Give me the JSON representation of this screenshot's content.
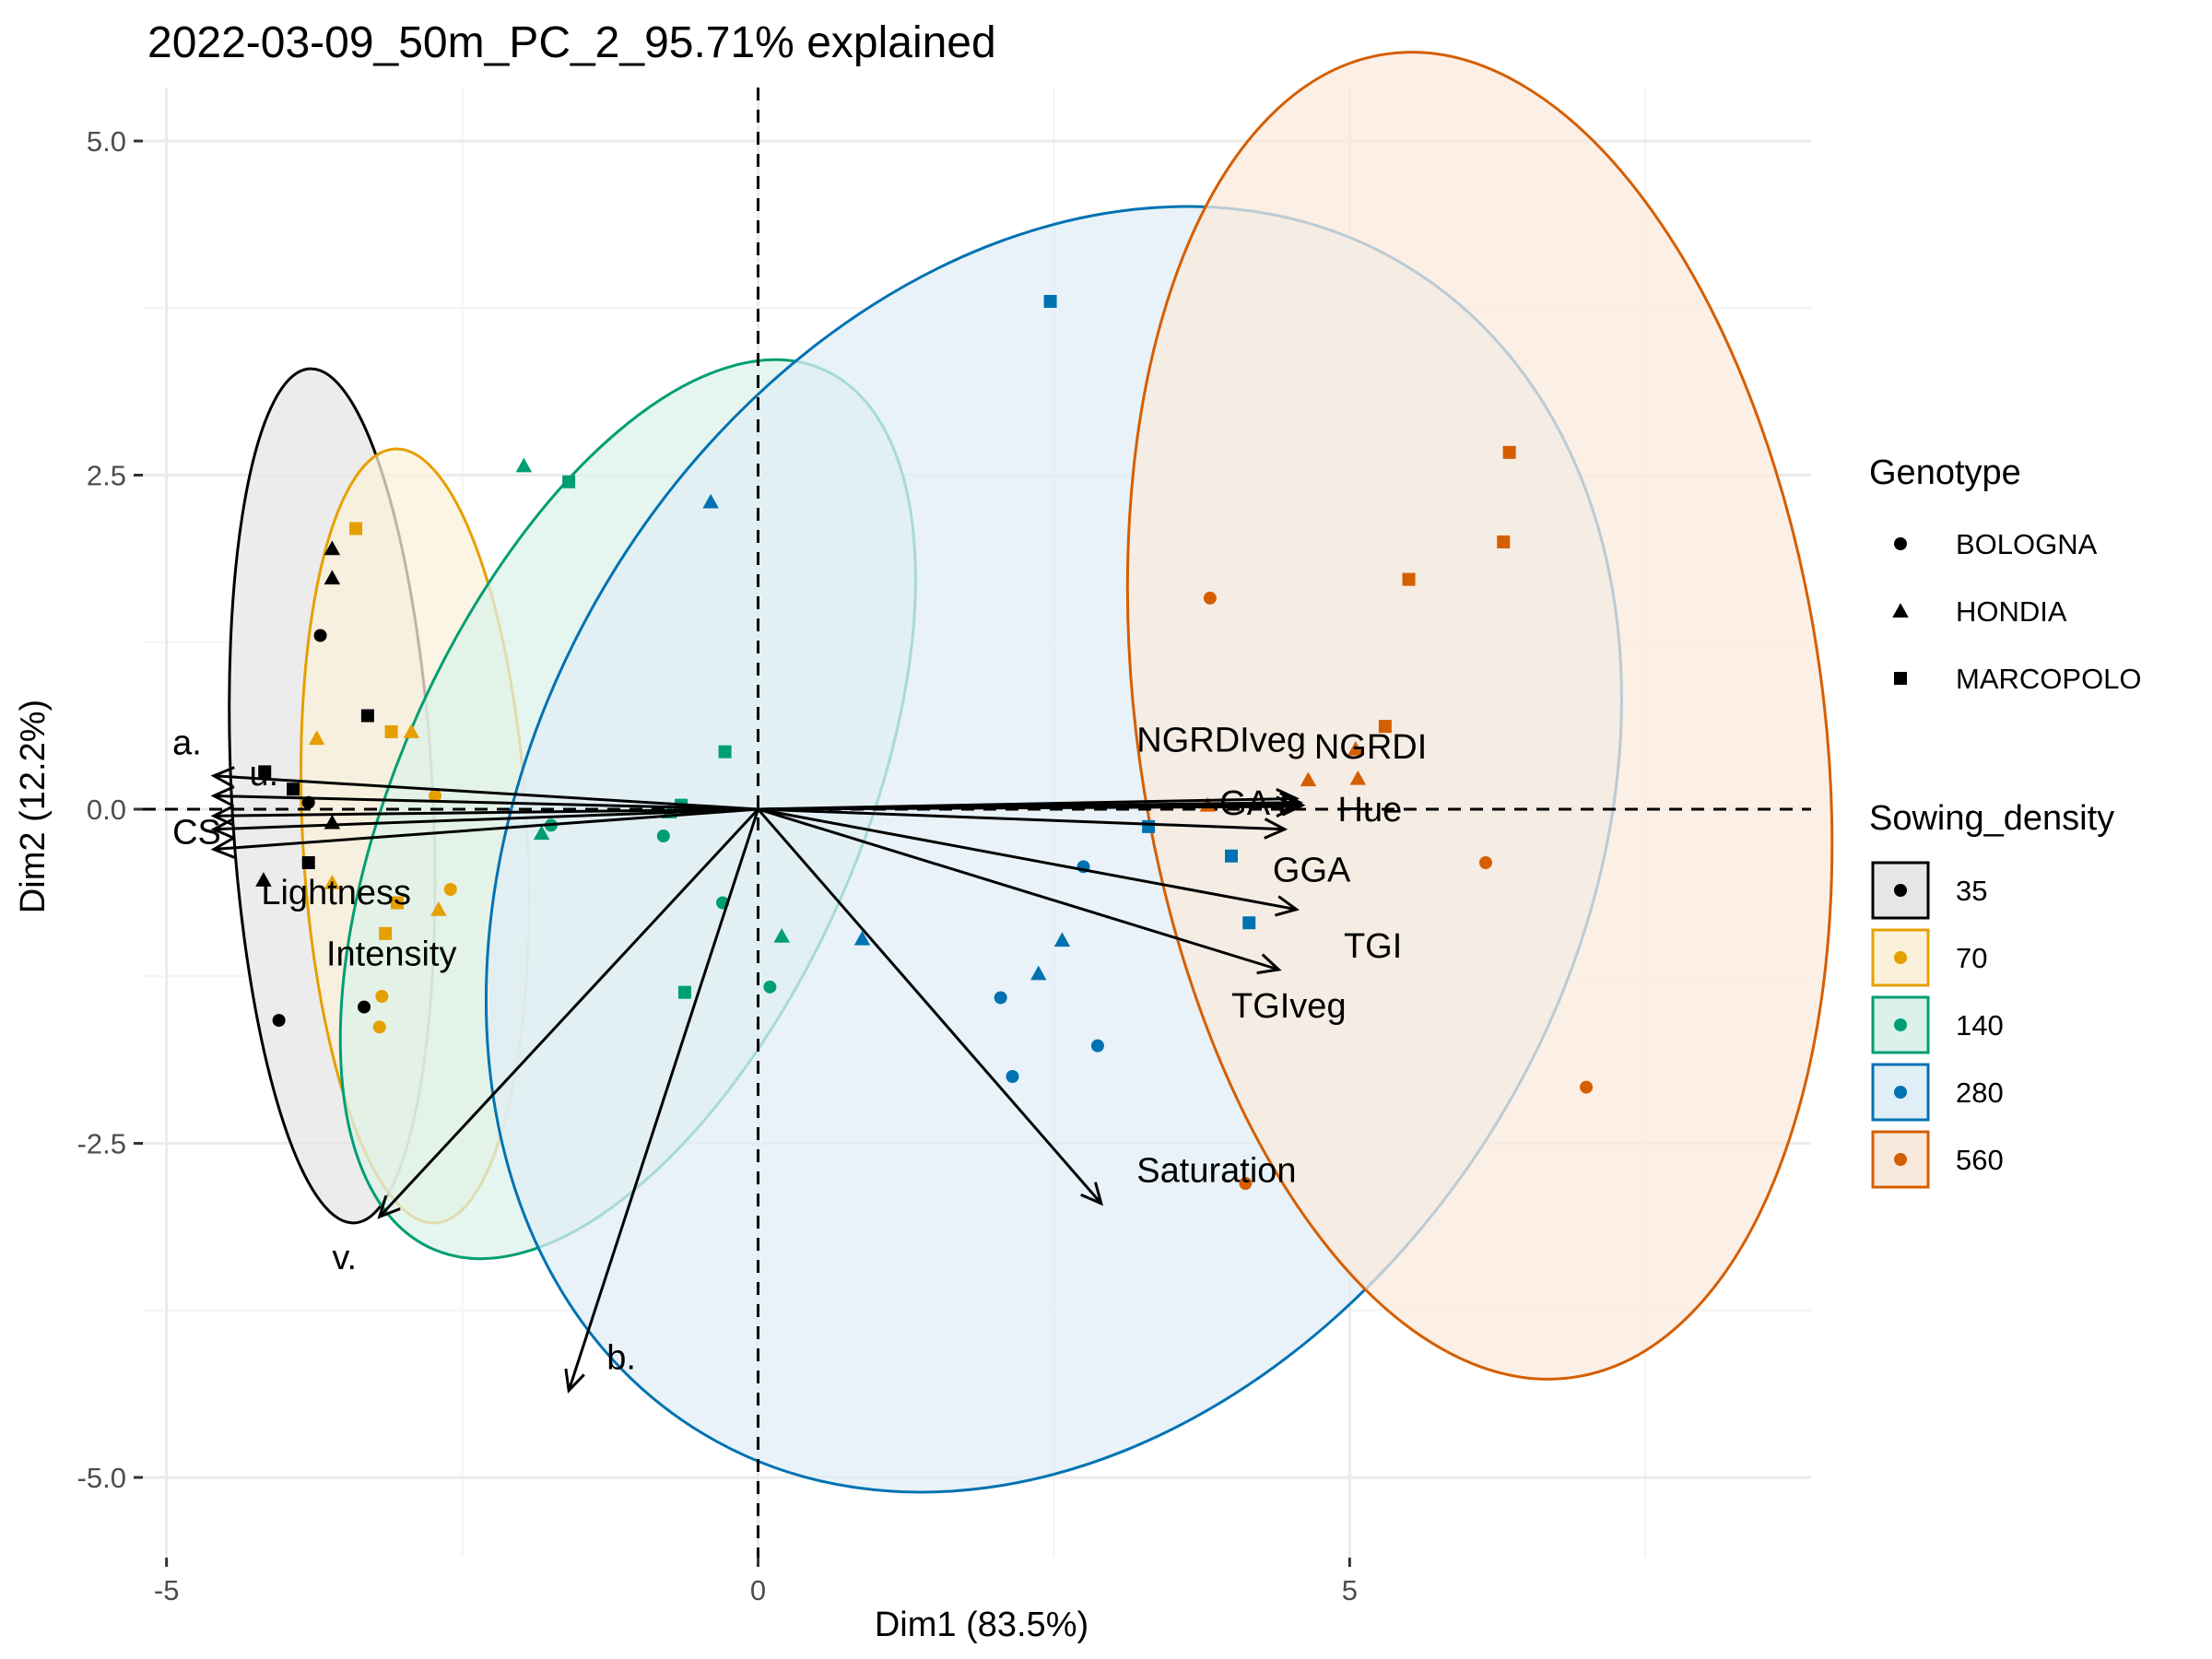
{
  "chart_data": {
    "type": "scatter",
    "title": "2022-03-09_50m_PC_2_95.71% explained",
    "xlabel": "Dim1 (83.5%)",
    "ylabel": "Dim2 (12.2%)",
    "xlim": [
      -5.2,
      8.9
    ],
    "ylim": [
      -5.6,
      5.4
    ],
    "xticks": [
      -5,
      0,
      5
    ],
    "xtick_labels": [
      "-5",
      "0",
      "5"
    ],
    "yticks": [
      -5,
      -2.5,
      0,
      2.5,
      5
    ],
    "ytick_labels": [
      "-5.0",
      "-2.5",
      "0.0",
      "2.5",
      "5.0"
    ],
    "grid": true,
    "legend_position": "right",
    "reference_lines": {
      "x": 0,
      "y": 0,
      "style": "dashed"
    },
    "legends": {
      "genotype": {
        "title": "Genotype",
        "entries": [
          {
            "label": "BOLOGNA",
            "shape": "circle"
          },
          {
            "label": "HONDIA",
            "shape": "triangle"
          },
          {
            "label": "MARCOPOLO",
            "shape": "square"
          }
        ]
      },
      "sowing_density": {
        "title": "Sowing_density",
        "entries": [
          {
            "label": "35",
            "color": "#000000",
            "fill": "#e6e6e6"
          },
          {
            "label": "70",
            "color": "#E69F00",
            "fill": "#fbf1db"
          },
          {
            "label": "140",
            "color": "#009E73",
            "fill": "#dcf1ea"
          },
          {
            "label": "280",
            "color": "#0072B2",
            "fill": "#e0eef6"
          },
          {
            "label": "560",
            "color": "#D55E00",
            "fill": "#f9e9dd"
          }
        ]
      }
    },
    "ellipses": [
      {
        "group": "35",
        "cx": -3.6,
        "cy": 0.1,
        "rx": 0.85,
        "ry": 3.2,
        "angle": -3
      },
      {
        "group": "70",
        "cx": -2.9,
        "cy": -0.2,
        "rx": 0.95,
        "ry": 2.9,
        "angle": -3
      },
      {
        "group": "140",
        "cx": -1.1,
        "cy": 0.0,
        "rx": 1.95,
        "ry": 3.6,
        "angle": 24
      },
      {
        "group": "280",
        "cx": 2.5,
        "cy": -0.3,
        "rx": 4.4,
        "ry": 5.1,
        "angle": 31
      },
      {
        "group": "560",
        "cx": 6.1,
        "cy": 0.7,
        "rx": 2.9,
        "ry": 5.0,
        "angle": -8
      }
    ],
    "points": [
      {
        "x": -3.7,
        "y": 1.3,
        "genotype": "BOLOGNA",
        "density": "35"
      },
      {
        "x": -3.8,
        "y": 0.05,
        "genotype": "BOLOGNA",
        "density": "35"
      },
      {
        "x": -3.33,
        "y": -1.48,
        "genotype": "BOLOGNA",
        "density": "35"
      },
      {
        "x": -4.05,
        "y": -1.58,
        "genotype": "BOLOGNA",
        "density": "35"
      },
      {
        "x": -3.6,
        "y": 1.95,
        "genotype": "HONDIA",
        "density": "35"
      },
      {
        "x": -3.6,
        "y": 1.73,
        "genotype": "HONDIA",
        "density": "35"
      },
      {
        "x": -3.6,
        "y": -0.1,
        "genotype": "HONDIA",
        "density": "35"
      },
      {
        "x": -4.18,
        "y": -0.53,
        "genotype": "HONDIA",
        "density": "35"
      },
      {
        "x": -4.17,
        "y": 0.28,
        "genotype": "MARCOPOLO",
        "density": "35"
      },
      {
        "x": -3.93,
        "y": 0.15,
        "genotype": "MARCOPOLO",
        "density": "35"
      },
      {
        "x": -3.3,
        "y": 0.7,
        "genotype": "MARCOPOLO",
        "density": "35"
      },
      {
        "x": -3.8,
        "y": -0.4,
        "genotype": "MARCOPOLO",
        "density": "35"
      },
      {
        "x": -2.73,
        "y": 0.1,
        "genotype": "BOLOGNA",
        "density": "70"
      },
      {
        "x": -2.6,
        "y": -0.6,
        "genotype": "BOLOGNA",
        "density": "70"
      },
      {
        "x": -3.18,
        "y": -1.4,
        "genotype": "BOLOGNA",
        "density": "70"
      },
      {
        "x": -3.2,
        "y": -1.63,
        "genotype": "BOLOGNA",
        "density": "70"
      },
      {
        "x": -3.73,
        "y": 0.53,
        "genotype": "HONDIA",
        "density": "70"
      },
      {
        "x": -2.93,
        "y": 0.58,
        "genotype": "HONDIA",
        "density": "70"
      },
      {
        "x": -3.6,
        "y": -0.55,
        "genotype": "HONDIA",
        "density": "70"
      },
      {
        "x": -2.7,
        "y": -0.75,
        "genotype": "HONDIA",
        "density": "70"
      },
      {
        "x": -3.4,
        "y": 2.1,
        "genotype": "MARCOPOLO",
        "density": "70"
      },
      {
        "x": -3.1,
        "y": 0.58,
        "genotype": "MARCOPOLO",
        "density": "70"
      },
      {
        "x": -3.05,
        "y": -0.7,
        "genotype": "MARCOPOLO",
        "density": "70"
      },
      {
        "x": -3.15,
        "y": -0.93,
        "genotype": "MARCOPOLO",
        "density": "70"
      },
      {
        "x": -1.75,
        "y": -0.12,
        "genotype": "BOLOGNA",
        "density": "140"
      },
      {
        "x": -0.8,
        "y": -0.2,
        "genotype": "BOLOGNA",
        "density": "140"
      },
      {
        "x": -0.3,
        "y": -0.7,
        "genotype": "BOLOGNA",
        "density": "140"
      },
      {
        "x": 0.1,
        "y": -1.33,
        "genotype": "BOLOGNA",
        "density": "140"
      },
      {
        "x": -1.98,
        "y": 2.57,
        "genotype": "HONDIA",
        "density": "140"
      },
      {
        "x": -1.83,
        "y": -0.18,
        "genotype": "HONDIA",
        "density": "140"
      },
      {
        "x": -0.75,
        "y": -0.02,
        "genotype": "HONDIA",
        "density": "140"
      },
      {
        "x": 0.2,
        "y": -0.95,
        "genotype": "HONDIA",
        "density": "140"
      },
      {
        "x": -1.6,
        "y": 2.45,
        "genotype": "MARCOPOLO",
        "density": "140"
      },
      {
        "x": -0.28,
        "y": 0.43,
        "genotype": "MARCOPOLO",
        "density": "140"
      },
      {
        "x": -0.65,
        "y": 0.03,
        "genotype": "MARCOPOLO",
        "density": "140"
      },
      {
        "x": -0.62,
        "y": -1.37,
        "genotype": "MARCOPOLO",
        "density": "140"
      },
      {
        "x": 2.75,
        "y": -0.43,
        "genotype": "BOLOGNA",
        "density": "280"
      },
      {
        "x": 2.05,
        "y": -1.41,
        "genotype": "BOLOGNA",
        "density": "280"
      },
      {
        "x": 2.15,
        "y": -2.0,
        "genotype": "BOLOGNA",
        "density": "280"
      },
      {
        "x": 2.87,
        "y": -1.77,
        "genotype": "BOLOGNA",
        "density": "280"
      },
      {
        "x": -0.4,
        "y": 2.3,
        "genotype": "HONDIA",
        "density": "280"
      },
      {
        "x": 0.88,
        "y": -0.97,
        "genotype": "HONDIA",
        "density": "280"
      },
      {
        "x": 2.37,
        "y": -1.23,
        "genotype": "HONDIA",
        "density": "280"
      },
      {
        "x": 2.57,
        "y": -0.98,
        "genotype": "HONDIA",
        "density": "280"
      },
      {
        "x": 2.47,
        "y": 3.8,
        "genotype": "MARCOPOLO",
        "density": "280"
      },
      {
        "x": 3.3,
        "y": -0.13,
        "genotype": "MARCOPOLO",
        "density": "280"
      },
      {
        "x": 4.0,
        "y": -0.35,
        "genotype": "MARCOPOLO",
        "density": "280"
      },
      {
        "x": 4.15,
        "y": -0.85,
        "genotype": "MARCOPOLO",
        "density": "280"
      },
      {
        "x": 3.82,
        "y": 1.58,
        "genotype": "BOLOGNA",
        "density": "560"
      },
      {
        "x": 6.15,
        "y": -0.4,
        "genotype": "BOLOGNA",
        "density": "560"
      },
      {
        "x": 4.12,
        "y": -2.8,
        "genotype": "BOLOGNA",
        "density": "560"
      },
      {
        "x": 7.0,
        "y": -2.08,
        "genotype": "BOLOGNA",
        "density": "560"
      },
      {
        "x": 3.8,
        "y": 0.03,
        "genotype": "HONDIA",
        "density": "560"
      },
      {
        "x": 4.65,
        "y": 0.22,
        "genotype": "HONDIA",
        "density": "560"
      },
      {
        "x": 5.05,
        "y": 0.45,
        "genotype": "HONDIA",
        "density": "560"
      },
      {
        "x": 5.07,
        "y": 0.23,
        "genotype": "HONDIA",
        "density": "560"
      },
      {
        "x": 5.5,
        "y": 1.72,
        "genotype": "MARCOPOLO",
        "density": "560"
      },
      {
        "x": 6.3,
        "y": 2.0,
        "genotype": "MARCOPOLO",
        "density": "560"
      },
      {
        "x": 6.35,
        "y": 2.67,
        "genotype": "MARCOPOLO",
        "density": "560"
      },
      {
        "x": 5.3,
        "y": 0.62,
        "genotype": "MARCOPOLO",
        "density": "560"
      }
    ],
    "variables": [
      {
        "name": "a.",
        "x": -4.6,
        "y": 0.25,
        "lx": -4.95,
        "ly": 0.5
      },
      {
        "name": "u.",
        "x": -4.6,
        "y": 0.1,
        "lx": -4.3,
        "ly": 0.27
      },
      {
        "name": "CS",
        "x": -4.6,
        "y": -0.15,
        "lx": -4.95,
        "ly": -0.17
      },
      {
        "name": "Lightness",
        "x": -4.6,
        "y": -0.3,
        "lx": -4.2,
        "ly": -0.62
      },
      {
        "name": "Intensity",
        "x": -4.6,
        "y": -0.05,
        "lx": -3.65,
        "ly": -1.08
      },
      {
        "name": "v.",
        "x": -3.2,
        "y": -3.05,
        "lx": -3.6,
        "ly": -3.35
      },
      {
        "name": "b.",
        "x": -1.6,
        "y": -4.35,
        "lx": -1.28,
        "ly": -4.1
      },
      {
        "name": "NGRDIveg",
        "x": 4.55,
        "y": 0.08,
        "lx": 3.2,
        "ly": 0.52
      },
      {
        "name": "NGRDI",
        "x": 4.6,
        "y": 0.03,
        "lx": 4.7,
        "ly": 0.47
      },
      {
        "name": "GA",
        "x": 4.58,
        "y": 0.05,
        "lx": 3.9,
        "ly": 0.05
      },
      {
        "name": "Hue",
        "x": 4.55,
        "y": 0.02,
        "lx": 4.9,
        "ly": 0.0
      },
      {
        "name": "GGA",
        "x": 4.45,
        "y": -0.15,
        "lx": 4.35,
        "ly": -0.45
      },
      {
        "name": "TGI",
        "x": 4.55,
        "y": -0.75,
        "lx": 4.95,
        "ly": -1.02
      },
      {
        "name": "TGIveg",
        "x": 4.4,
        "y": -1.2,
        "lx": 4.0,
        "ly": -1.47
      },
      {
        "name": "Saturation",
        "x": 2.9,
        "y": -2.95,
        "lx": 3.2,
        "ly": -2.7
      }
    ]
  }
}
